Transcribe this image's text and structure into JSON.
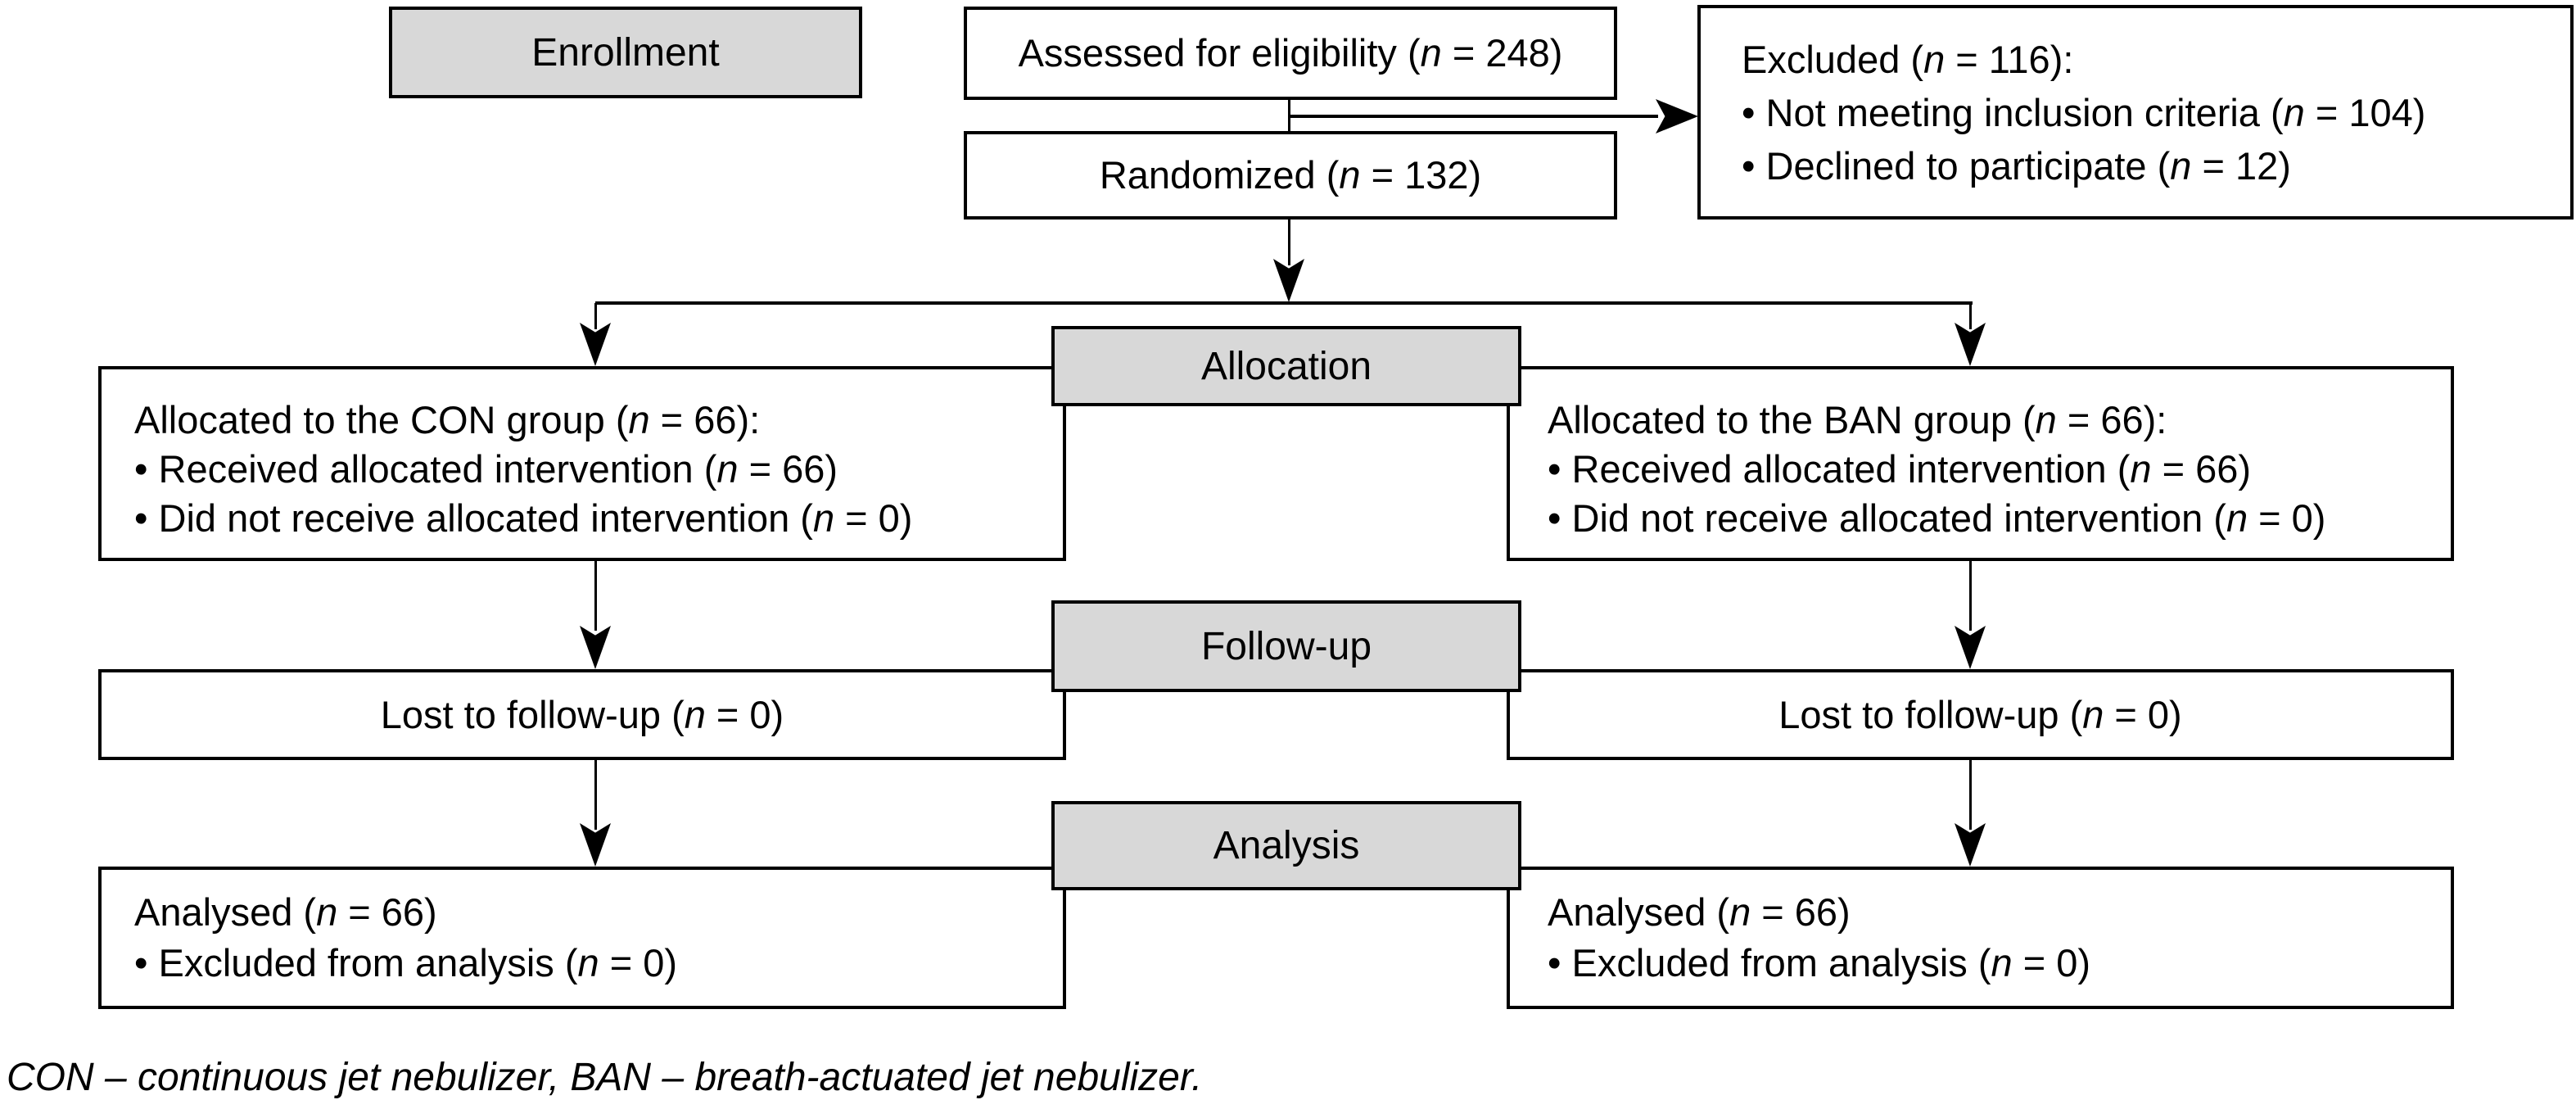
{
  "stages": {
    "enrollment": "Enrollment",
    "allocation": "Allocation",
    "follow_up": "Follow-up",
    "analysis": "Analysis"
  },
  "boxes": {
    "assessed": {
      "text": "Assessed for eligibility (n = 248)"
    },
    "excluded": {
      "line1": "Excluded (n = 116):",
      "line2": "• Not meeting inclusion criteria (n = 104)",
      "line3": "• Declined to participate (n = 12)"
    },
    "randomized": {
      "text": "Randomized (n = 132)"
    },
    "allocated_con": {
      "line1": "Allocated to the CON group (n = 66):",
      "line2": "• Received allocated intervention (n = 66)",
      "line3": "• Did not receive allocated intervention (n = 0)"
    },
    "allocated_ban": {
      "line1": "Allocated to the BAN group (n = 66):",
      "line2": "• Received allocated intervention (n = 66)",
      "line3": "• Did not receive allocated intervention (n = 0)"
    },
    "lost_con": {
      "text": "Lost to follow-up (n = 0)"
    },
    "lost_ban": {
      "text": "Lost to follow-up (n = 0)"
    },
    "analysed_con": {
      "line1": "Analysed (n = 66)",
      "line2": "• Excluded from analysis (n = 0)"
    },
    "analysed_ban": {
      "line1": "Analysed (n = 66)",
      "line2": "• Excluded from analysis (n = 0)"
    }
  },
  "footer": {
    "note": "CON – continuous jet nebulizer, BAN – breath-actuated jet nebulizer."
  },
  "colors": {
    "background": "#ffffff",
    "border": "#000000",
    "stage_fill": "#d8d8d8",
    "text": "#000000"
  }
}
